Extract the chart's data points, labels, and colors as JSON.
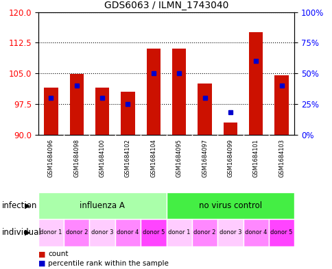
{
  "title": "GDS6063 / ILMN_1743040",
  "samples": [
    "GSM1684096",
    "GSM1684098",
    "GSM1684100",
    "GSM1684102",
    "GSM1684104",
    "GSM1684095",
    "GSM1684097",
    "GSM1684099",
    "GSM1684101",
    "GSM1684103"
  ],
  "count_values": [
    101.5,
    104.8,
    101.5,
    100.5,
    111.0,
    111.0,
    102.5,
    93.0,
    115.0,
    104.5
  ],
  "percentile_values": [
    30,
    40,
    30,
    25,
    50,
    50,
    30,
    18,
    60,
    40
  ],
  "ylim_left": [
    90,
    120
  ],
  "ylim_right": [
    0,
    100
  ],
  "yticks_left": [
    90,
    97.5,
    105,
    112.5,
    120
  ],
  "yticks_right": [
    0,
    25,
    50,
    75,
    100
  ],
  "infection_groups": [
    {
      "label": "influenza A",
      "span": [
        0,
        5
      ],
      "color": "#aaffaa"
    },
    {
      "label": "no virus control",
      "span": [
        5,
        10
      ],
      "color": "#44ee44"
    }
  ],
  "individual_labels": [
    "donor 1",
    "donor 2",
    "donor 3",
    "donor 4",
    "donor 5",
    "donor 1",
    "donor 2",
    "donor 3",
    "donor 4",
    "donor 5"
  ],
  "individual_colors": [
    "#ffccff",
    "#ff88ff",
    "#ffccff",
    "#ff88ff",
    "#ff44ff",
    "#ffccff",
    "#ff88ff",
    "#ffccff",
    "#ff88ff",
    "#ff44ff"
  ],
  "bar_color": "#CC1100",
  "blue_color": "#0000CC",
  "base_value": 90,
  "bg_color": "#C8C8C8",
  "plot_bg": "#FFFFFF",
  "infection_label": "infection",
  "individual_label": "individual"
}
